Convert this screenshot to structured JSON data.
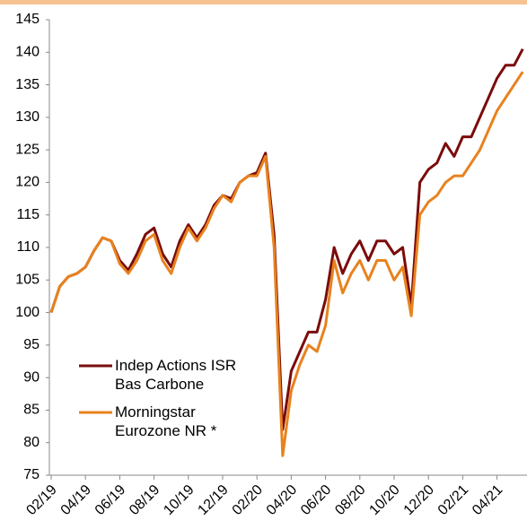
{
  "chart_data": {
    "type": "line",
    "x": [
      "02/19",
      null,
      null,
      null,
      "04/19",
      null,
      null,
      null,
      "06/19",
      null,
      null,
      null,
      "08/19",
      null,
      null,
      null,
      "10/19",
      null,
      null,
      null,
      "12/19",
      null,
      null,
      null,
      "02/20",
      null,
      null,
      null,
      "04/20",
      null,
      null,
      null,
      "06/20",
      null,
      null,
      null,
      "08/20",
      null,
      null,
      null,
      "10/20",
      null,
      null,
      null,
      "12/20",
      null,
      null,
      null,
      "02/21",
      null,
      null,
      null,
      "04/21",
      null,
      null,
      null
    ],
    "series": [
      {
        "name": "Indep Actions ISR Bas Carbone",
        "color": "#7a0c0c",
        "values": [
          100,
          104,
          105.5,
          106,
          107,
          109.5,
          111.5,
          111,
          108,
          106.5,
          109,
          112,
          113,
          109,
          107,
          111,
          113.5,
          111.5,
          113.5,
          116.5,
          118,
          117.5,
          120,
          121,
          121.5,
          124.5,
          112,
          82,
          91,
          94,
          97,
          97,
          102,
          110,
          106,
          109,
          111,
          108,
          111,
          111,
          109,
          110,
          101,
          120,
          122,
          123,
          126,
          124,
          127,
          127,
          130,
          133,
          136,
          138,
          138,
          140.5
        ]
      },
      {
        "name": "Morningstar Eurozone NR *",
        "color": "#e8821e",
        "values": [
          100,
          104,
          105.5,
          106,
          107,
          109.5,
          111.5,
          111,
          107.5,
          106,
          108,
          111,
          112,
          108,
          106,
          110,
          113,
          111,
          113,
          116,
          118,
          117,
          120,
          121,
          121,
          124,
          110,
          78,
          88,
          92,
          95,
          94,
          98,
          108,
          103,
          106,
          108,
          105,
          108,
          108,
          105,
          107,
          99.5,
          115,
          117,
          118,
          120,
          121,
          121,
          123,
          125,
          128,
          131,
          133,
          135,
          137
        ]
      }
    ],
    "ylim": [
      75,
      145
    ],
    "yticks": [
      75,
      80,
      85,
      90,
      95,
      100,
      105,
      110,
      115,
      120,
      125,
      130,
      135,
      140,
      145
    ],
    "grid": false,
    "legend": "center-left"
  }
}
